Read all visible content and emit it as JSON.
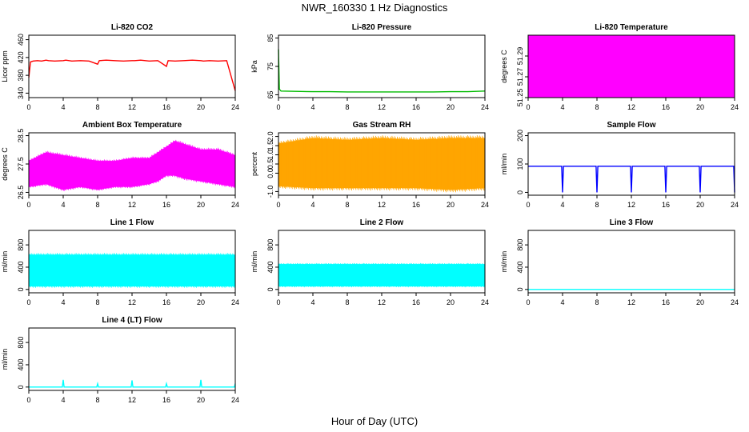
{
  "figure": {
    "title": "NWR_160330  1 Hz Diagnostics",
    "xlabel": "Hour of Day (UTC)"
  },
  "chart_data": [
    {
      "type": "line",
      "title": "Li-820 CO2",
      "ylabel": "Licor ppm",
      "color": "#ff0000",
      "xlim": [
        0,
        24
      ],
      "ylim": [
        330,
        470
      ],
      "xticks": [
        0,
        4,
        8,
        12,
        16,
        20,
        24
      ],
      "yticks": [
        340,
        380,
        420,
        460
      ],
      "series": [
        {
          "x": [
            0,
            0.2,
            0.5,
            1,
            1.5,
            2,
            2.3,
            3,
            4,
            4.3,
            5,
            6,
            7,
            8,
            8.2,
            9,
            10,
            11,
            12,
            12.3,
            13,
            14,
            15,
            16,
            16.2,
            17,
            18,
            19,
            20,
            20.3,
            21,
            22,
            23,
            24
          ],
          "y": [
            375,
            410,
            412,
            413,
            412,
            414,
            413,
            412,
            413,
            414,
            412,
            413,
            412,
            405,
            413,
            414,
            413,
            412,
            413,
            413,
            414,
            412,
            413,
            400,
            413,
            412,
            413,
            414,
            413,
            412,
            413,
            412,
            413,
            345
          ]
        }
      ]
    },
    {
      "type": "line",
      "title": "Li-820 Pressure",
      "ylabel": "kPa",
      "color": "#00bb00",
      "xlim": [
        0,
        24
      ],
      "ylim": [
        64,
        86
      ],
      "xticks": [
        0,
        4,
        8,
        12,
        16,
        20,
        24
      ],
      "yticks": [
        65,
        75,
        85
      ],
      "series": [
        {
          "x": [
            0,
            0.1,
            0.3,
            2,
            4,
            6,
            8,
            10,
            12,
            14,
            16,
            18,
            20,
            22,
            24
          ],
          "y": [
            81,
            67,
            66.3,
            66.2,
            66.1,
            66.1,
            66.0,
            66.0,
            66.0,
            66.0,
            66.0,
            66.0,
            66.1,
            66.1,
            66.3
          ]
        }
      ]
    },
    {
      "type": "area",
      "title": "Li-820 Temperature",
      "ylabel": "degrees C",
      "color": "#ff00ff",
      "xlim": [
        0,
        24
      ],
      "ylim": [
        51.25,
        51.31
      ],
      "xticks": [
        0,
        4,
        8,
        12,
        16,
        20,
        24
      ],
      "yticks": [
        51.25,
        51.27,
        51.29
      ],
      "series": [
        {
          "x": [
            0,
            24
          ],
          "y_min": [
            51.25,
            51.25
          ],
          "y_max": [
            51.31,
            51.31
          ]
        }
      ]
    },
    {
      "type": "area",
      "title": "Ambient Box Temperature",
      "ylabel": "degrees C",
      "color": "#ff00ff",
      "xlim": [
        0,
        24
      ],
      "ylim": [
        26.4,
        28.6
      ],
      "xticks": [
        0,
        4,
        8,
        12,
        16,
        20,
        24
      ],
      "yticks": [
        26.5,
        27.5,
        28.5
      ],
      "series": [
        {
          "x": [
            0,
            2,
            4,
            6,
            8,
            10,
            12,
            14,
            15,
            16,
            17,
            18,
            20,
            22,
            24
          ],
          "y_min": [
            26.7,
            26.8,
            26.6,
            26.7,
            26.6,
            26.7,
            26.7,
            26.8,
            26.9,
            27.1,
            27.1,
            27.0,
            26.9,
            26.8,
            26.7
          ],
          "y_max": [
            27.6,
            27.9,
            27.8,
            27.7,
            27.6,
            27.6,
            27.7,
            27.7,
            27.9,
            28.1,
            28.3,
            28.2,
            28.0,
            28.0,
            27.8
          ]
        }
      ]
    },
    {
      "type": "area",
      "title": "Gas Stream RH",
      "ylabel": "percent",
      "color": "#ffa500",
      "xlim": [
        0,
        24
      ],
      "ylim": [
        -1.2,
        2.2
      ],
      "xticks": [
        0,
        4,
        8,
        12,
        16,
        20,
        24
      ],
      "yticks": [
        -1.0,
        0.0,
        0.5,
        1.0,
        1.5,
        2.0
      ],
      "series": [
        {
          "x": [
            0,
            4,
            8,
            12,
            16,
            20,
            24
          ],
          "y_min": [
            -0.7,
            -0.8,
            -0.8,
            -0.8,
            -0.8,
            -0.9,
            -0.8
          ],
          "y_max": [
            1.6,
            1.9,
            1.8,
            1.9,
            1.8,
            1.9,
            1.9
          ]
        }
      ]
    },
    {
      "type": "line",
      "title": "Sample Flow",
      "ylabel": "ml/min",
      "color": "#0000ff",
      "xlim": [
        0,
        24
      ],
      "ylim": [
        -10,
        210
      ],
      "xticks": [
        0,
        4,
        8,
        12,
        16,
        20,
        24
      ],
      "yticks": [
        0,
        100,
        200
      ],
      "series": [
        {
          "x": [
            0,
            3.9,
            4,
            4.1,
            7.9,
            8,
            8.1,
            11.9,
            12,
            12.1,
            15.9,
            16,
            16.1,
            19.9,
            20,
            20.1,
            23.9,
            24
          ],
          "y": [
            92,
            92,
            0,
            92,
            92,
            0,
            92,
            92,
            0,
            92,
            92,
            0,
            92,
            92,
            0,
            92,
            92,
            0
          ]
        }
      ]
    },
    {
      "type": "area",
      "title": "Line 1 Flow",
      "ylabel": "ml/min",
      "color": "#00ffff",
      "xlim": [
        0,
        24
      ],
      "ylim": [
        -60,
        1060
      ],
      "xticks": [
        0,
        4,
        8,
        12,
        16,
        20,
        24
      ],
      "yticks": [
        0,
        400,
        800
      ],
      "series": [
        {
          "x": [
            0,
            24
          ],
          "y_min": [
            60,
            60
          ],
          "y_max": [
            620,
            620
          ]
        }
      ]
    },
    {
      "type": "area",
      "title": "Line 2 Flow",
      "ylabel": "ml/min",
      "color": "#00ffff",
      "xlim": [
        0,
        24
      ],
      "ylim": [
        -60,
        1060
      ],
      "xticks": [
        0,
        4,
        8,
        12,
        16,
        20,
        24
      ],
      "yticks": [
        0,
        400,
        800
      ],
      "series": [
        {
          "x": [
            0,
            24
          ],
          "y_min": [
            60,
            60
          ],
          "y_max": [
            450,
            450
          ]
        }
      ]
    },
    {
      "type": "line",
      "title": "Line 3 Flow",
      "ylabel": "ml/min",
      "color": "#00ffff",
      "xlim": [
        0,
        24
      ],
      "ylim": [
        -60,
        1060
      ],
      "xticks": [
        0,
        4,
        8,
        12,
        16,
        20,
        24
      ],
      "yticks": [
        0,
        400,
        800
      ],
      "series": [
        {
          "x": [
            0,
            24
          ],
          "y": [
            0,
            0
          ]
        }
      ]
    },
    {
      "type": "line",
      "title": "Line 4 (LT) Flow",
      "ylabel": "ml/min",
      "color": "#00ffff",
      "xlim": [
        0,
        24
      ],
      "ylim": [
        -60,
        1060
      ],
      "xticks": [
        0,
        4,
        8,
        12,
        16,
        20,
        24
      ],
      "yticks": [
        0,
        400,
        800
      ],
      "series": [
        {
          "x": [
            0,
            3.9,
            4,
            4.1,
            7.9,
            8,
            8.1,
            11.9,
            12,
            12.1,
            15.9,
            16,
            16.1,
            19.9,
            20,
            20.1,
            23.9,
            24
          ],
          "y": [
            0,
            0,
            130,
            0,
            0,
            60,
            0,
            0,
            120,
            0,
            0,
            60,
            0,
            0,
            130,
            0,
            0,
            60
          ]
        }
      ]
    }
  ]
}
